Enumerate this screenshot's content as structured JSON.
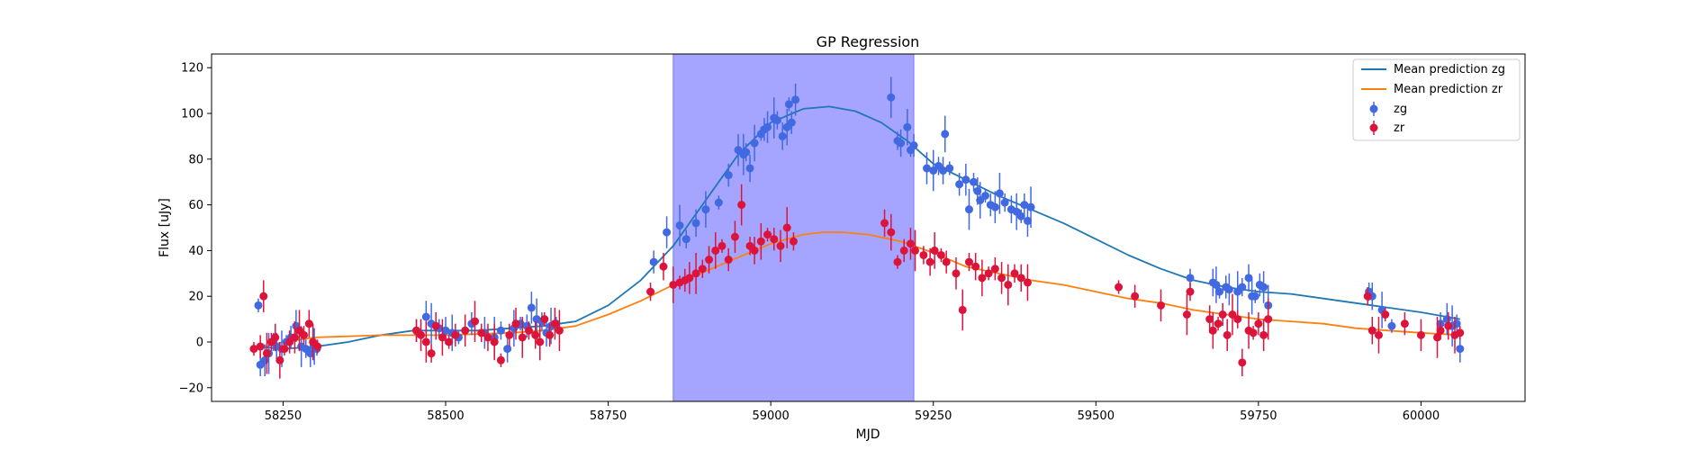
{
  "chart_data": {
    "type": "scatter",
    "title": "GP Regression",
    "xlabel": "MJD",
    "ylabel": "Flux [uJy]",
    "xlim": [
      58140,
      60160
    ],
    "ylim": [
      -26,
      126
    ],
    "x_ticks": [
      58250,
      58500,
      58750,
      59000,
      59250,
      59500,
      59750,
      60000
    ],
    "y_ticks": [
      -20,
      0,
      20,
      40,
      60,
      80,
      100,
      120
    ],
    "grid": false,
    "legend_position": "top-right",
    "highlight_span": {
      "x0": 58850,
      "x1": 59220,
      "color": "#a5a5ff"
    },
    "lines": [
      {
        "name": "Mean prediction zg",
        "color": "#1f77b4",
        "x": [
          58210,
          58250,
          58300,
          58350,
          58400,
          58450,
          58500,
          58550,
          58600,
          58650,
          58700,
          58750,
          58800,
          58850,
          58900,
          58950,
          59000,
          59050,
          59090,
          59130,
          59170,
          59210,
          59250,
          59300,
          59350,
          59400,
          59450,
          59500,
          59550,
          59600,
          59650,
          59700,
          59750,
          59800,
          59850,
          59900,
          59950,
          60000,
          60060
        ],
        "y": [
          -2,
          -3,
          -2,
          0,
          3,
          5,
          5,
          5,
          6,
          7,
          9,
          16,
          27,
          42,
          62,
          82,
          96,
          102,
          103,
          101,
          96,
          88,
          78,
          71,
          64,
          58,
          52,
          45,
          38,
          32,
          27,
          24,
          22,
          21,
          19,
          17,
          15,
          13,
          10
        ]
      },
      {
        "name": "Mean prediction zr",
        "color": "#ff7f0e",
        "x": [
          58210,
          58250,
          58300,
          58400,
          58500,
          58600,
          58650,
          58700,
          58750,
          58800,
          58850,
          58900,
          58950,
          59000,
          59050,
          59080,
          59110,
          59150,
          59200,
          59250,
          59300,
          59350,
          59400,
          59450,
          59500,
          59550,
          59600,
          59650,
          59700,
          59750,
          59800,
          59850,
          59900,
          59950,
          60000,
          60060
        ],
        "y": [
          -3,
          0,
          2,
          3,
          3,
          4,
          5,
          7,
          12,
          18,
          25,
          31,
          37,
          43,
          47,
          48,
          48,
          47,
          44,
          39,
          33,
          30,
          27,
          25,
          22,
          19,
          17,
          14,
          12,
          10,
          9,
          8,
          6,
          5,
          4,
          3
        ]
      }
    ],
    "series": [
      {
        "name": "zg",
        "color": "#4169e1",
        "x": [
          58212,
          58215,
          58222,
          58228,
          58235,
          58240,
          58248,
          58255,
          58262,
          58270,
          58278,
          58285,
          58292,
          58298,
          58302,
          58455,
          58470,
          58478,
          58490,
          58500,
          58510,
          58520,
          58540,
          58560,
          58575,
          58585,
          58595,
          58605,
          58615,
          58625,
          58632,
          58640,
          58648,
          58655,
          58662,
          58670,
          58820,
          58840,
          58860,
          58870,
          58885,
          58900,
          58920,
          58935,
          58950,
          58958,
          58962,
          58968,
          58975,
          58985,
          58990,
          58995,
          59005,
          59010,
          59018,
          59025,
          59028,
          59032,
          59038,
          59185,
          59195,
          59200,
          59210,
          59215,
          59220,
          59240,
          59250,
          59258,
          59265,
          59268,
          59275,
          59290,
          59300,
          59305,
          59312,
          59318,
          59322,
          59330,
          59338,
          59345,
          59352,
          59360,
          59370,
          59378,
          59385,
          59390,
          59395,
          59400,
          59645,
          59680,
          59685,
          59690,
          59700,
          59705,
          59718,
          59725,
          59735,
          59740,
          59745,
          59752,
          59758,
          59765,
          59920,
          59925,
          59940,
          59955,
          60030,
          60040,
          60048,
          60055,
          60060
        ],
        "y": [
          16,
          -10,
          -8,
          -5,
          0,
          -2,
          -3,
          0,
          2,
          7,
          -2,
          -3,
          -5,
          -2,
          -3,
          5,
          11,
          8,
          6,
          5,
          4,
          2,
          8,
          4,
          2,
          5,
          -3,
          6,
          8,
          7,
          15,
          10,
          9,
          4,
          7,
          8,
          35,
          48,
          51,
          45,
          52,
          58,
          61,
          73,
          84,
          82,
          83,
          76,
          87,
          91,
          93,
          94,
          98,
          97,
          90,
          94,
          104,
          96,
          106,
          107,
          88,
          87,
          94,
          84,
          86,
          76,
          75,
          77,
          75,
          91,
          76,
          69,
          71,
          58,
          70,
          66,
          62,
          64,
          60,
          59,
          65,
          61,
          58,
          57,
          55,
          60,
          53,
          59,
          28,
          26,
          25,
          22,
          24,
          23,
          22,
          24,
          28,
          20,
          20,
          25,
          24,
          16,
          22,
          20,
          14,
          7,
          8,
          10,
          7,
          8,
          -3
        ]
      },
      {
        "name": "zr",
        "color": "#dc143c",
        "x": [
          58205,
          58215,
          58220,
          58225,
          58232,
          58238,
          58245,
          58252,
          58260,
          58268,
          58275,
          58282,
          58290,
          58296,
          58303,
          58455,
          58462,
          58470,
          58478,
          58485,
          58495,
          58505,
          58515,
          58530,
          58545,
          58555,
          58565,
          58575,
          58585,
          58598,
          58608,
          58618,
          58628,
          58638,
          58645,
          58652,
          58660,
          58668,
          58675,
          58815,
          58835,
          58850,
          58860,
          58868,
          58875,
          58885,
          58895,
          58905,
          58915,
          58925,
          58935,
          58945,
          58955,
          58968,
          58975,
          58985,
          58995,
          59005,
          59015,
          59025,
          59035,
          59175,
          59185,
          59195,
          59205,
          59215,
          59222,
          59235,
          59245,
          59252,
          59262,
          59270,
          59285,
          59295,
          59305,
          59315,
          59325,
          59335,
          59345,
          59355,
          59365,
          59375,
          59385,
          59395,
          59535,
          59560,
          59600,
          59640,
          59645,
          59675,
          59680,
          59688,
          59695,
          59702,
          59710,
          59718,
          59725,
          59735,
          59742,
          59750,
          59758,
          59765,
          59918,
          59925,
          59935,
          59945,
          59975,
          60000,
          60025,
          60030,
          60042,
          60052,
          60060
        ],
        "y": [
          -3,
          -2,
          20,
          -5,
          0,
          2,
          -8,
          -3,
          0,
          2,
          5,
          3,
          8,
          0,
          -2,
          5,
          3,
          0,
          -5,
          7,
          2,
          0,
          3,
          5,
          9,
          4,
          2,
          0,
          -8,
          3,
          8,
          2,
          5,
          3,
          0,
          10,
          3,
          8,
          5,
          22,
          33,
          25,
          26,
          27,
          28,
          30,
          32,
          36,
          40,
          42,
          36,
          46,
          60,
          42,
          40,
          44,
          47,
          45,
          42,
          50,
          44,
          52,
          48,
          35,
          40,
          43,
          40,
          38,
          35,
          40,
          38,
          35,
          30,
          14,
          35,
          33,
          28,
          30,
          32,
          28,
          25,
          30,
          28,
          26,
          24,
          20,
          16,
          12,
          22,
          10,
          5,
          8,
          12,
          3,
          12,
          10,
          -9,
          5,
          4,
          8,
          3,
          10,
          20,
          5,
          3,
          12,
          8,
          3,
          2,
          5,
          7,
          3,
          4
        ]
      }
    ]
  }
}
